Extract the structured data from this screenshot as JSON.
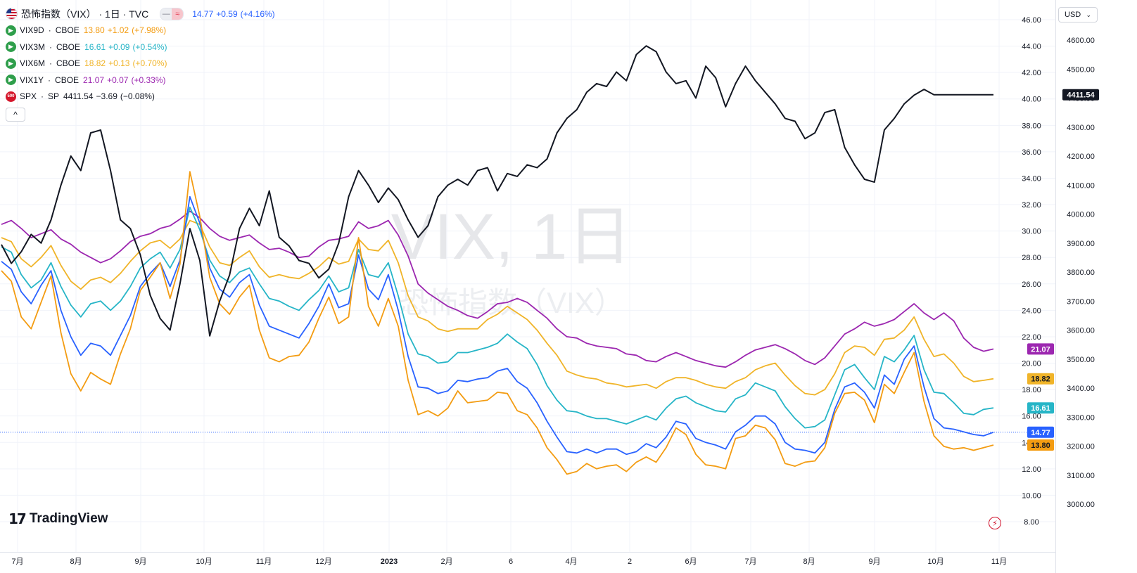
{
  "main": {
    "symbol": "恐怖指数（VIX）",
    "interval": "1日",
    "exchange": "TVC",
    "title": "恐怖指数（VIX） · 1日 · TVC",
    "last": "14.77",
    "change": "+0.59",
    "change_pct": "(+4.16%)",
    "color": "#2962ff"
  },
  "legend": [
    {
      "symbol": "VIX9D",
      "exchange": "CBOE",
      "value": "13.80",
      "change": "+1.02",
      "change_pct": "(+7.98%)",
      "color": "#f39c12",
      "icon": "arrow-right-icon"
    },
    {
      "symbol": "VIX3M",
      "exchange": "CBOE",
      "value": "16.61",
      "change": "+0.09",
      "change_pct": "(+0.54%)",
      "color": "#26b5c7",
      "icon": "arrow-right-icon"
    },
    {
      "symbol": "VIX6M",
      "exchange": "CBOE",
      "value": "18.82",
      "change": "+0.13",
      "change_pct": "(+0.70%)",
      "color": "#f0b429",
      "icon": "arrow-right-icon"
    },
    {
      "symbol": "VIX1Y",
      "exchange": "CBOE",
      "value": "21.07",
      "change": "+0.07",
      "change_pct": "(+0.33%)",
      "color": "#9c27b0",
      "icon": "arrow-right-icon"
    },
    {
      "symbol": "SPX",
      "exchange": "SP",
      "value": "4411.54",
      "change": "−3.69",
      "change_pct": "(−0.08%)",
      "color": "#131722",
      "icon": "sp500-icon"
    }
  ],
  "controls": {
    "currency": "USD",
    "collapse_symbol": "^",
    "pill_left": "—",
    "pill_right": "≈"
  },
  "watermark": {
    "big": "VIX, 1日",
    "small": "恐怖指数（VIX）"
  },
  "branding": {
    "logo_text": "TradingView",
    "logo_mark": "17"
  },
  "chart_data": {
    "type": "line",
    "x_labels": [
      "7月",
      "8月",
      "9月",
      "10月",
      "11月",
      "12月",
      "2023",
      "2月",
      "6",
      "4月",
      "2",
      "6月",
      "7月",
      "8月",
      "9月",
      "10月",
      "11月"
    ],
    "x_range": [
      "2022-06-27",
      "2023-11-17"
    ],
    "axes": {
      "left_axis": {
        "ticks": [
          "8.00",
          "10.00",
          "12.00",
          "14.00",
          "16.00",
          "18.00",
          "20.00",
          "22.00",
          "24.00",
          "26.00",
          "28.00",
          "30.00",
          "32.00",
          "34.00",
          "36.00",
          "38.00",
          "40.00",
          "42.00",
          "44.00",
          "46.00"
        ],
        "ylim": [
          7,
          47
        ]
      },
      "right_axis": {
        "ticks": [
          "3000.00",
          "3100.00",
          "3200.00",
          "3300.00",
          "3400.00",
          "3500.00",
          "3600.00",
          "3700.00",
          "3800.00",
          "3900.00",
          "4000.00",
          "4100.00",
          "4200.00",
          "4300.00",
          "4400.00",
          "4500.00",
          "4600.00"
        ],
        "ylim": [
          2900,
          4650
        ]
      }
    },
    "series": [
      {
        "name": "VIX1Y",
        "axis": "left",
        "color": "#9c27b0",
        "label": "21.07",
        "values": [
          30.5,
          30.8,
          30.2,
          29.5,
          29.8,
          30.1,
          29.4,
          29.0,
          28.4,
          28.0,
          27.6,
          27.9,
          28.5,
          29.2,
          29.6,
          29.8,
          30.2,
          30.4,
          30.9,
          31.5,
          31.0,
          30.2,
          29.6,
          29.3,
          29.5,
          29.7,
          29.1,
          28.6,
          28.7,
          28.4,
          28.0,
          28.1,
          28.8,
          29.3,
          29.4,
          29.6,
          30.7,
          30.2,
          30.4,
          30.8,
          29.7,
          28.1,
          26.0,
          25.3,
          24.8,
          24.3,
          24.0,
          23.6,
          23.4,
          23.9,
          24.5,
          24.6,
          24.9,
          24.6,
          24.0,
          23.4,
          22.6,
          22.0,
          21.9,
          21.5,
          21.3,
          21.2,
          21.1,
          20.7,
          20.6,
          20.2,
          20.1,
          20.5,
          20.8,
          20.5,
          20.2,
          20.0,
          19.8,
          19.7,
          20.1,
          20.6,
          21.0,
          21.2,
          21.4,
          21.1,
          20.7,
          20.2,
          19.9,
          20.4,
          21.3,
          22.2,
          22.6,
          23.1,
          22.8,
          23.0,
          23.3,
          23.9,
          24.5,
          23.8,
          23.3,
          23.8,
          23.2,
          21.9,
          21.2,
          20.9,
          21.07
        ]
      },
      {
        "name": "VIX6M",
        "axis": "left",
        "color": "#f0b429",
        "label": "18.82",
        "values": [
          29.5,
          29.2,
          27.9,
          27.3,
          28.0,
          28.9,
          27.4,
          26.2,
          25.6,
          26.3,
          26.5,
          26.1,
          26.8,
          27.7,
          28.5,
          29.1,
          29.3,
          28.7,
          29.4,
          30.8,
          30.5,
          28.8,
          27.6,
          27.4,
          28.0,
          28.5,
          27.3,
          26.5,
          26.7,
          26.5,
          26.4,
          26.8,
          27.3,
          28.0,
          27.5,
          27.7,
          29.4,
          28.6,
          28.5,
          29.3,
          27.6,
          25.1,
          23.5,
          23.2,
          22.6,
          22.4,
          22.6,
          22.6,
          22.6,
          23.3,
          23.7,
          24.3,
          23.8,
          23.3,
          22.5,
          21.5,
          20.6,
          19.4,
          19.1,
          18.9,
          18.8,
          18.5,
          18.4,
          18.2,
          18.3,
          18.4,
          18.1,
          18.6,
          18.9,
          18.9,
          18.7,
          18.4,
          18.2,
          18.1,
          18.6,
          18.9,
          19.5,
          19.8,
          20.0,
          19.1,
          18.3,
          17.7,
          17.6,
          18.0,
          19.2,
          20.8,
          21.3,
          21.2,
          20.6,
          21.8,
          21.9,
          22.5,
          23.5,
          21.8,
          20.5,
          20.7,
          20.0,
          19.0,
          18.6,
          18.7,
          18.82
        ]
      },
      {
        "name": "VIX3M",
        "axis": "left",
        "color": "#26b5c7",
        "label": "16.61",
        "values": [
          28.8,
          28.4,
          26.7,
          25.7,
          26.3,
          27.6,
          25.8,
          24.4,
          23.5,
          24.5,
          24.7,
          24.0,
          24.7,
          25.8,
          27.2,
          27.9,
          28.4,
          27.2,
          28.6,
          31.8,
          30.1,
          27.8,
          26.6,
          26.1,
          26.9,
          27.2,
          26.0,
          24.9,
          24.7,
          24.3,
          24.0,
          24.8,
          25.5,
          26.6,
          25.4,
          25.7,
          28.6,
          26.7,
          26.5,
          27.6,
          25.1,
          22.2,
          20.7,
          20.5,
          20.0,
          20.1,
          20.8,
          20.8,
          21.0,
          21.2,
          21.5,
          22.2,
          21.6,
          21.1,
          19.9,
          18.3,
          17.2,
          16.4,
          16.3,
          16.0,
          15.8,
          15.8,
          15.6,
          15.4,
          15.7,
          16.0,
          15.7,
          16.6,
          17.3,
          17.5,
          17.0,
          16.7,
          16.4,
          16.3,
          17.3,
          17.6,
          18.5,
          18.2,
          17.9,
          16.7,
          15.8,
          15.1,
          15.2,
          15.7,
          17.6,
          19.5,
          19.9,
          18.9,
          18.0,
          20.5,
          20.1,
          21.0,
          22.1,
          19.5,
          17.8,
          17.7,
          17.0,
          16.2,
          16.1,
          16.5,
          16.61
        ]
      },
      {
        "name": "VIX",
        "axis": "left",
        "color": "#2962ff",
        "label": "14.77",
        "values": [
          27.7,
          27.1,
          25.4,
          24.5,
          25.9,
          27.0,
          24.0,
          22.0,
          20.6,
          21.5,
          21.3,
          20.6,
          22.1,
          23.6,
          25.8,
          26.8,
          27.6,
          25.8,
          27.8,
          32.6,
          30.6,
          27.2,
          25.6,
          25.0,
          26.1,
          26.7,
          24.4,
          22.8,
          22.5,
          22.2,
          21.9,
          23.0,
          24.3,
          26.0,
          24.2,
          24.5,
          28.2,
          25.6,
          24.8,
          26.7,
          24.0,
          20.5,
          18.2,
          18.1,
          17.7,
          17.9,
          18.7,
          18.6,
          18.8,
          18.9,
          19.4,
          19.6,
          18.6,
          18.1,
          17.0,
          15.6,
          14.4,
          13.3,
          13.2,
          13.5,
          13.2,
          13.5,
          13.5,
          13.1,
          13.3,
          13.9,
          13.6,
          14.4,
          15.6,
          15.4,
          14.3,
          14.0,
          13.8,
          13.5,
          14.8,
          15.3,
          16.0,
          16.0,
          15.4,
          14.0,
          13.5,
          13.4,
          13.2,
          14.0,
          16.5,
          18.2,
          18.5,
          17.8,
          16.6,
          19.1,
          18.4,
          20.3,
          21.3,
          18.2,
          15.8,
          15.1,
          15.0,
          14.8,
          14.6,
          14.5,
          14.77
        ]
      },
      {
        "name": "VIX9D",
        "axis": "left",
        "color": "#f39c12",
        "label": "13.80",
        "values": [
          27.0,
          26.2,
          23.5,
          22.6,
          24.6,
          26.6,
          22.3,
          19.2,
          17.9,
          19.3,
          18.8,
          18.4,
          20.7,
          22.6,
          25.5,
          26.5,
          27.6,
          24.9,
          27.5,
          34.5,
          31.1,
          26.5,
          24.5,
          23.7,
          25.0,
          25.9,
          22.5,
          20.4,
          20.1,
          20.5,
          20.6,
          21.6,
          23.4,
          25.0,
          23.0,
          23.5,
          29.5,
          24.3,
          22.8,
          24.9,
          22.8,
          18.7,
          16.1,
          16.4,
          16.0,
          16.6,
          17.9,
          17.0,
          17.1,
          17.2,
          17.8,
          17.7,
          16.4,
          16.1,
          15.1,
          13.6,
          12.7,
          11.6,
          11.8,
          12.4,
          12.0,
          12.2,
          12.3,
          11.8,
          12.5,
          12.9,
          12.5,
          13.6,
          15.1,
          14.6,
          13.1,
          12.3,
          12.2,
          12.0,
          14.3,
          14.5,
          15.3,
          15.1,
          14.2,
          12.4,
          12.2,
          12.5,
          12.6,
          13.6,
          16.2,
          17.7,
          17.8,
          17.2,
          15.5,
          18.4,
          17.7,
          19.3,
          20.8,
          17.1,
          14.5,
          13.7,
          13.5,
          13.6,
          13.4,
          13.6,
          13.8
        ]
      },
      {
        "name": "SPX",
        "axis": "right",
        "color": "#131722",
        "label": "4411.54",
        "values": [
          3895,
          3830,
          3870,
          3930,
          3900,
          3980,
          4100,
          4200,
          4150,
          4280,
          4290,
          4150,
          3980,
          3950,
          3860,
          3720,
          3640,
          3600,
          3760,
          3950,
          3840,
          3580,
          3700,
          3790,
          3950,
          4020,
          3960,
          4080,
          3920,
          3890,
          3840,
          3830,
          3780,
          3810,
          3900,
          4060,
          4150,
          4100,
          4040,
          4090,
          4050,
          3980,
          3920,
          3960,
          4060,
          4100,
          4120,
          4100,
          4150,
          4160,
          4080,
          4140,
          4130,
          4170,
          4160,
          4190,
          4280,
          4330,
          4360,
          4420,
          4450,
          4440,
          4490,
          4460,
          4550,
          4580,
          4560,
          4490,
          4450,
          4460,
          4400,
          4510,
          4470,
          4370,
          4450,
          4510,
          4460,
          4420,
          4380,
          4330,
          4320,
          4260,
          4280,
          4350,
          4360,
          4230,
          4170,
          4120,
          4110,
          4290,
          4330,
          4380,
          4410,
          4430,
          4411.54,
          4411.54,
          4411.54,
          4411.54,
          4411.54,
          4411.54,
          4411.54
        ]
      }
    ]
  }
}
